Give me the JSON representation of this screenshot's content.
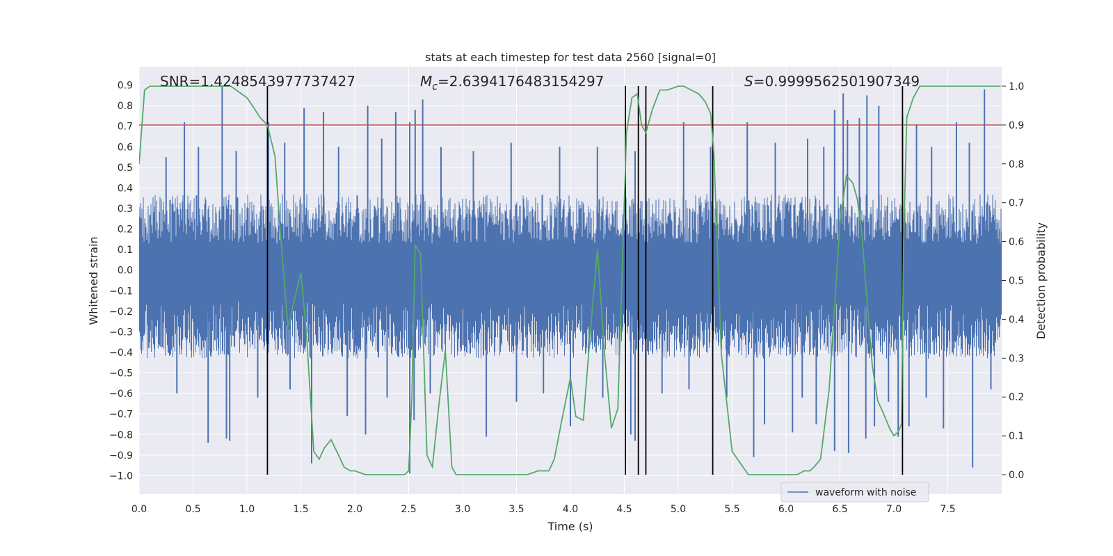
{
  "chart_data": {
    "type": "line",
    "title": "stats at each timestep for test data 2560 [signal=0]",
    "xlabel": "Time (s)",
    "ylabel_left": "Whitened strain",
    "ylabel_right": "Detection probability",
    "xlim": [
      0.0,
      8.0
    ],
    "ylim_left": [
      -1.09,
      0.99
    ],
    "ylim_right": [
      -0.05,
      1.05
    ],
    "x_ticks": [
      0.0,
      0.5,
      1.0,
      1.5,
      2.0,
      2.5,
      3.0,
      3.5,
      4.0,
      4.5,
      5.0,
      5.5,
      6.0,
      6.5,
      7.0,
      7.5
    ],
    "x_tick_labels": [
      "0.0",
      "0.5",
      "1.0",
      "1.5",
      "2.0",
      "2.5",
      "3.0",
      "3.5",
      "4.0",
      "4.5",
      "5.0",
      "5.5",
      "6.0",
      "6.5",
      "7.0",
      "7.5"
    ],
    "y_left_ticks": [
      0.9,
      0.8,
      0.7,
      0.6,
      0.5,
      0.4,
      0.3,
      0.2,
      0.1,
      0.0,
      -0.1,
      -0.2,
      -0.3,
      -0.4,
      -0.5,
      -0.6,
      -0.7,
      -0.8,
      -0.9,
      -1.0
    ],
    "y_left_tick_labels": [
      "0.9",
      "0.8",
      "0.7",
      "0.6",
      "0.5",
      "0.4",
      "0.3",
      "0.2",
      "0.1",
      "0.0",
      "−0.1",
      "−0.2",
      "−0.3",
      "−0.4",
      "−0.5",
      "−0.6",
      "−0.7",
      "−0.8",
      "−0.9",
      "−1.0"
    ],
    "y_right_ticks": [
      1.0,
      0.9,
      0.8,
      0.7,
      0.6,
      0.5,
      0.4,
      0.3,
      0.2,
      0.1,
      0.0
    ],
    "y_right_tick_labels": [
      "1.0",
      "0.9",
      "0.8",
      "0.7",
      "0.6",
      "0.5",
      "0.4",
      "0.3",
      "0.2",
      "0.1",
      "0.0"
    ],
    "grid": true,
    "legend": {
      "position": "bottom-right",
      "entries": [
        "waveform with noise"
      ]
    },
    "annotations": {
      "snr": "SNR=1.4248543977737427",
      "mc_symbol": "M",
      "mc_sub": "c",
      "mc_value": "=2.6394176483154297",
      "s_symbol": "S",
      "s_value": "=0.9999562501907349"
    },
    "threshold_right": 0.9,
    "vertical_lines_x": [
      1.19,
      4.51,
      4.63,
      4.7,
      5.32,
      7.08
    ],
    "waveform": {
      "name": "waveform with noise",
      "duration": 8.0,
      "dense_band": [
        -0.43,
        0.37
      ],
      "positive_spikes": [
        [
          0.77,
          0.9
        ],
        [
          0.42,
          0.72
        ],
        [
          1.2,
          0.72
        ],
        [
          1.53,
          0.79
        ],
        [
          1.71,
          0.77
        ],
        [
          2.12,
          0.8
        ],
        [
          2.38,
          0.77
        ],
        [
          2.51,
          0.72
        ],
        [
          2.56,
          0.78
        ],
        [
          2.63,
          0.83
        ],
        [
          5.05,
          0.72
        ],
        [
          5.64,
          0.72
        ],
        [
          6.45,
          0.78
        ],
        [
          6.53,
          0.86
        ],
        [
          6.57,
          0.73
        ],
        [
          6.68,
          0.74
        ],
        [
          6.75,
          0.85
        ],
        [
          6.86,
          0.8
        ],
        [
          7.08,
          0.75
        ],
        [
          7.21,
          0.71
        ],
        [
          7.58,
          0.72
        ],
        [
          7.84,
          0.88
        ],
        [
          0.25,
          0.55
        ],
        [
          0.55,
          0.6
        ],
        [
          0.9,
          0.58
        ],
        [
          1.35,
          0.62
        ],
        [
          1.85,
          0.6
        ],
        [
          2.25,
          0.64
        ],
        [
          2.8,
          0.6
        ],
        [
          3.1,
          0.58
        ],
        [
          3.45,
          0.62
        ],
        [
          3.9,
          0.6
        ],
        [
          4.25,
          0.6
        ],
        [
          4.6,
          0.58
        ],
        [
          5.3,
          0.6
        ],
        [
          5.9,
          0.62
        ],
        [
          6.2,
          0.64
        ],
        [
          6.35,
          0.6
        ],
        [
          7.35,
          0.6
        ],
        [
          7.7,
          0.62
        ]
      ],
      "negative_spikes": [
        [
          0.64,
          -0.84
        ],
        [
          0.81,
          -0.82
        ],
        [
          0.84,
          -0.83
        ],
        [
          1.6,
          -0.94
        ],
        [
          1.93,
          -0.71
        ],
        [
          2.1,
          -0.8
        ],
        [
          2.51,
          -0.99
        ],
        [
          2.55,
          -0.73
        ],
        [
          3.22,
          -0.81
        ],
        [
          4.0,
          -0.76
        ],
        [
          4.56,
          -0.8
        ],
        [
          4.6,
          -0.83
        ],
        [
          5.7,
          -0.91
        ],
        [
          5.8,
          -0.75
        ],
        [
          6.06,
          -0.79
        ],
        [
          6.28,
          -0.75
        ],
        [
          6.45,
          -0.88
        ],
        [
          6.58,
          -0.89
        ],
        [
          6.74,
          -0.82
        ],
        [
          6.82,
          -0.76
        ],
        [
          7.04,
          -0.81
        ],
        [
          7.14,
          -0.76
        ],
        [
          7.46,
          -0.77
        ],
        [
          7.73,
          -0.96
        ],
        [
          0.35,
          -0.6
        ],
        [
          1.1,
          -0.62
        ],
        [
          1.4,
          -0.58
        ],
        [
          2.3,
          -0.62
        ],
        [
          2.7,
          -0.6
        ],
        [
          3.5,
          -0.64
        ],
        [
          3.75,
          -0.6
        ],
        [
          4.3,
          -0.62
        ],
        [
          4.85,
          -0.6
        ],
        [
          5.1,
          -0.58
        ],
        [
          5.45,
          -0.62
        ],
        [
          6.15,
          -0.62
        ],
        [
          6.95,
          -0.64
        ],
        [
          7.3,
          -0.62
        ],
        [
          7.9,
          -0.58
        ]
      ]
    },
    "probability_series": {
      "x": [
        0.0,
        0.05,
        0.1,
        0.15,
        0.3,
        0.5,
        0.7,
        0.8,
        0.85,
        0.9,
        1.0,
        1.05,
        1.12,
        1.19,
        1.26,
        1.31,
        1.38,
        1.44,
        1.5,
        1.55,
        1.62,
        1.67,
        1.72,
        1.78,
        1.85,
        1.9,
        1.96,
        2.0,
        2.1,
        2.2,
        2.3,
        2.4,
        2.46,
        2.5,
        2.53,
        2.56,
        2.61,
        2.67,
        2.72,
        2.78,
        2.84,
        2.9,
        2.94,
        3.0,
        3.1,
        3.2,
        3.3,
        3.4,
        3.5,
        3.6,
        3.7,
        3.8,
        3.85,
        3.92,
        4.0,
        4.05,
        4.12,
        4.18,
        4.25,
        4.32,
        4.38,
        4.44,
        4.52,
        4.57,
        4.62,
        4.66,
        4.7,
        4.76,
        4.83,
        4.9,
        5.0,
        5.05,
        5.12,
        5.19,
        5.25,
        5.3,
        5.33,
        5.4,
        5.5,
        5.6,
        5.65,
        5.7,
        5.8,
        5.9,
        6.0,
        6.1,
        6.17,
        6.22,
        6.26,
        6.32,
        6.4,
        6.5,
        6.56,
        6.62,
        6.66,
        6.7,
        6.75,
        6.8,
        6.85,
        6.9,
        6.93,
        6.96,
        7.0,
        7.04,
        7.07,
        7.09,
        7.12,
        7.18,
        7.24,
        7.3,
        7.5,
        7.7,
        7.99
      ],
      "y": [
        0.8,
        0.99,
        1.0,
        1.0,
        1.0,
        1.0,
        1.0,
        1.0,
        1.0,
        0.99,
        0.97,
        0.95,
        0.92,
        0.9,
        0.82,
        0.62,
        0.38,
        0.45,
        0.52,
        0.37,
        0.06,
        0.04,
        0.07,
        0.09,
        0.05,
        0.02,
        0.01,
        0.01,
        0.0,
        0.0,
        0.0,
        0.0,
        0.0,
        0.01,
        0.2,
        0.59,
        0.57,
        0.05,
        0.02,
        0.18,
        0.32,
        0.02,
        0.0,
        0.0,
        0.0,
        0.0,
        0.0,
        0.0,
        0.0,
        0.0,
        0.01,
        0.01,
        0.04,
        0.14,
        0.25,
        0.15,
        0.14,
        0.35,
        0.58,
        0.3,
        0.12,
        0.17,
        0.88,
        0.97,
        0.98,
        0.9,
        0.88,
        0.94,
        0.99,
        0.99,
        1.0,
        1.0,
        0.99,
        0.98,
        0.96,
        0.93,
        0.83,
        0.31,
        0.06,
        0.02,
        0.0,
        0.0,
        0.0,
        0.0,
        0.0,
        0.0,
        0.01,
        0.01,
        0.02,
        0.04,
        0.22,
        0.65,
        0.77,
        0.75,
        0.71,
        0.63,
        0.45,
        0.28,
        0.19,
        0.16,
        0.14,
        0.12,
        0.1,
        0.11,
        0.13,
        0.6,
        0.92,
        0.97,
        1.0,
        1.0,
        1.0,
        1.0,
        1.0
      ]
    },
    "colors": {
      "background": "#eaeaf2",
      "grid": "#ffffff",
      "waveform": "#4c72b0",
      "probability": "#55a868",
      "threshold": "#c44e52",
      "vertical_line": "#000000"
    }
  }
}
